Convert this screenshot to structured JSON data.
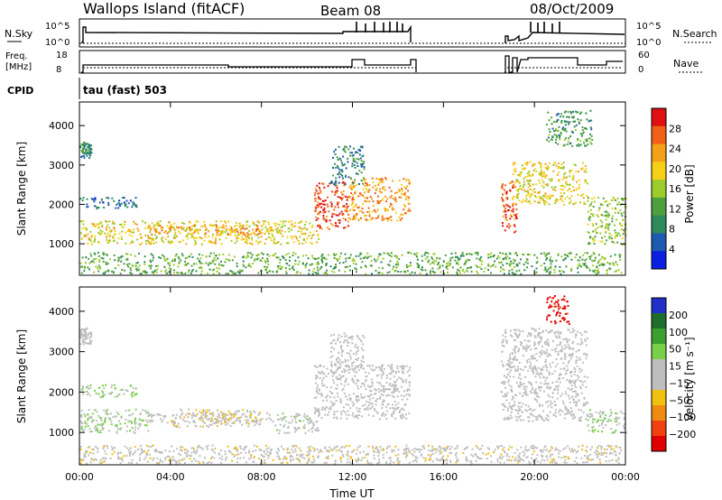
{
  "header": {
    "station": "Wallops Island (fitACF)",
    "beam": "Beam 08",
    "date": "08/Oct/2009"
  },
  "ancillary": {
    "nsky_label": "N.Sky",
    "nsky_ticks": [
      "10^5",
      "10^0"
    ],
    "nsearch_label": "N.Search",
    "nsearch_ticks": [
      "10^5",
      "10^0"
    ],
    "freq_label_1": "Freq.",
    "freq_label_2": "[MHz]",
    "freq_ticks": [
      "18",
      "8"
    ],
    "nave_label": "Nave",
    "nave_ticks": [
      "60",
      "0"
    ],
    "cpid_label": "CPID",
    "cpid_value": "tau (fast) 503"
  },
  "colors": {
    "power": [
      "#0b1fe0",
      "#1c5bb0",
      "#2e8a5c",
      "#4e9f3e",
      "#9ccc2c",
      "#f5d016",
      "#f4a11a",
      "#f06018",
      "#e01010"
    ],
    "velocity": [
      "#2030c8",
      "#1d6e2a",
      "#3ca030",
      "#78d048",
      "#bebebe",
      "#bebebe",
      "#f0c010",
      "#f08a10",
      "#f04010",
      "#e00000"
    ],
    "ground": "#bebebe"
  },
  "chart_data": [
    {
      "type": "heatmap",
      "name": "power",
      "ylabel": "Slant Range [km]",
      "yticks": [
        1000,
        2000,
        3000,
        4000
      ],
      "ylim": [
        200,
        4600
      ],
      "xlim": [
        0,
        24
      ],
      "colorbar": {
        "label": "Power [dB]",
        "ticks": [
          "28",
          "24",
          "20",
          "16",
          "12",
          "8",
          "4"
        ],
        "range": [
          0,
          30
        ]
      },
      "echo_regions": [
        {
          "t": [
            0.0,
            0.5
          ],
          "r": [
            3200,
            3600
          ],
          "v": 8
        },
        {
          "t": [
            0.0,
            2.5
          ],
          "r": [
            1900,
            2200
          ],
          "v": 6
        },
        {
          "t": [
            0.0,
            10.5
          ],
          "r": [
            1000,
            1600
          ],
          "v": 18
        },
        {
          "t": [
            3.0,
            8.5
          ],
          "r": [
            1250,
            1500
          ],
          "v": 22
        },
        {
          "t": [
            0.0,
            23.8
          ],
          "r": [
            250,
            800
          ],
          "v": 12
        },
        {
          "t": [
            10.3,
            11.8
          ],
          "r": [
            1350,
            2600
          ],
          "v": 26
        },
        {
          "t": [
            11.8,
            14.5
          ],
          "r": [
            1600,
            2700
          ],
          "v": 22
        },
        {
          "t": [
            11.0,
            12.5
          ],
          "r": [
            2500,
            3500
          ],
          "v": 8
        },
        {
          "t": [
            18.5,
            19.2
          ],
          "r": [
            1300,
            2600
          ],
          "v": 26
        },
        {
          "t": [
            19.0,
            22.3
          ],
          "r": [
            2000,
            3100
          ],
          "v": 18
        },
        {
          "t": [
            20.5,
            22.5
          ],
          "r": [
            3500,
            4400
          ],
          "v": 10
        },
        {
          "t": [
            22.3,
            24.0
          ],
          "r": [
            1000,
            2200
          ],
          "v": 14
        }
      ]
    },
    {
      "type": "heatmap",
      "name": "velocity",
      "ylabel": "Slant Range [km]",
      "yticks": [
        1000,
        2000,
        3000,
        4000
      ],
      "ylim": [
        200,
        4600
      ],
      "xlim": [
        0,
        24
      ],
      "colorbar": {
        "label": "Velocity [m s⁻¹]",
        "ticks": [
          "200",
          "100",
          "50",
          "15",
          "−15",
          "−50",
          "−100",
          "−200"
        ],
        "range": [
          -250,
          250
        ]
      },
      "echo_regions": [
        {
          "t": [
            0.0,
            0.5
          ],
          "r": [
            3200,
            3600
          ],
          "v": 0,
          "ground": true
        },
        {
          "t": [
            0.0,
            2.5
          ],
          "r": [
            1900,
            2200
          ],
          "v": 60
        },
        {
          "t": [
            0.0,
            3.0
          ],
          "r": [
            1000,
            1600
          ],
          "v": 40
        },
        {
          "t": [
            3.0,
            8.5
          ],
          "r": [
            1250,
            1500
          ],
          "v": 0,
          "ground": true
        },
        {
          "t": [
            4.0,
            8.0
          ],
          "r": [
            1150,
            1600
          ],
          "v": -40
        },
        {
          "t": [
            8.5,
            10.5
          ],
          "r": [
            1000,
            1500
          ],
          "v": 30
        },
        {
          "t": [
            0.0,
            23.8
          ],
          "r": [
            250,
            700
          ],
          "v": -30
        },
        {
          "t": [
            10.3,
            14.5
          ],
          "r": [
            1350,
            2700
          ],
          "v": 0,
          "ground": true
        },
        {
          "t": [
            11.0,
            12.5
          ],
          "r": [
            2500,
            3500
          ],
          "v": 0,
          "ground": true
        },
        {
          "t": [
            18.5,
            22.3
          ],
          "r": [
            1300,
            3600
          ],
          "v": 0,
          "ground": true
        },
        {
          "t": [
            20.5,
            21.5
          ],
          "r": [
            3700,
            4400
          ],
          "v": -220
        },
        {
          "t": [
            22.3,
            24.0
          ],
          "r": [
            1000,
            1600
          ],
          "v": 40
        }
      ]
    }
  ],
  "xaxis": {
    "label": "Time UT",
    "ticks": [
      {
        "h": 0,
        "label": "00:00"
      },
      {
        "h": 4,
        "label": "04:00"
      },
      {
        "h": 8,
        "label": "08:00"
      },
      {
        "h": 12,
        "label": "12:00"
      },
      {
        "h": 16,
        "label": "16:00"
      },
      {
        "h": 20,
        "label": "20:00"
      },
      {
        "h": 24,
        "label": "00:00"
      }
    ]
  }
}
